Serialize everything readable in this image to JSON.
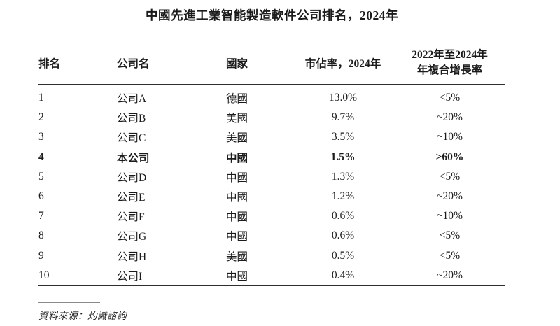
{
  "title": "中國先進工業智能製造軟件公司排名，2024年",
  "colors": {
    "background": "#ffffff",
    "text": "#1b1b1b",
    "table_rule": "#2e2e2e",
    "source_rule": "#8a8a8a"
  },
  "table": {
    "headers": {
      "rank": "排名",
      "company": "公司名",
      "country": "國家",
      "share": "市佔率，2024年",
      "cagr_line1": "2022年至2024年",
      "cagr_line2": "年複合增長率"
    },
    "rows": [
      {
        "rank": "1",
        "company": "公司A",
        "country": "德國",
        "share": "13.0%",
        "cagr": "<5%",
        "bold": false
      },
      {
        "rank": "2",
        "company": "公司B",
        "country": "美國",
        "share": "9.7%",
        "cagr": "~20%",
        "bold": false
      },
      {
        "rank": "3",
        "company": "公司C",
        "country": "美國",
        "share": "3.5%",
        "cagr": "~10%",
        "bold": false
      },
      {
        "rank": "4",
        "company": "本公司",
        "country": "中國",
        "share": "1.5%",
        "cagr": ">60%",
        "bold": true
      },
      {
        "rank": "5",
        "company": "公司D",
        "country": "中國",
        "share": "1.3%",
        "cagr": "<5%",
        "bold": false
      },
      {
        "rank": "6",
        "company": "公司E",
        "country": "中國",
        "share": "1.2%",
        "cagr": "~20%",
        "bold": false
      },
      {
        "rank": "7",
        "company": "公司F",
        "country": "中國",
        "share": "0.6%",
        "cagr": "~10%",
        "bold": false
      },
      {
        "rank": "8",
        "company": "公司G",
        "country": "中國",
        "share": "0.6%",
        "cagr": "<5%",
        "bold": false
      },
      {
        "rank": "9",
        "company": "公司H",
        "country": "美國",
        "share": "0.5%",
        "cagr": "<5%",
        "bold": false
      },
      {
        "rank": "10",
        "company": "公司I",
        "country": "中國",
        "share": "0.4%",
        "cagr": "~20%",
        "bold": false
      }
    ]
  },
  "footer": {
    "source": "資料來源：灼識諮詢"
  }
}
